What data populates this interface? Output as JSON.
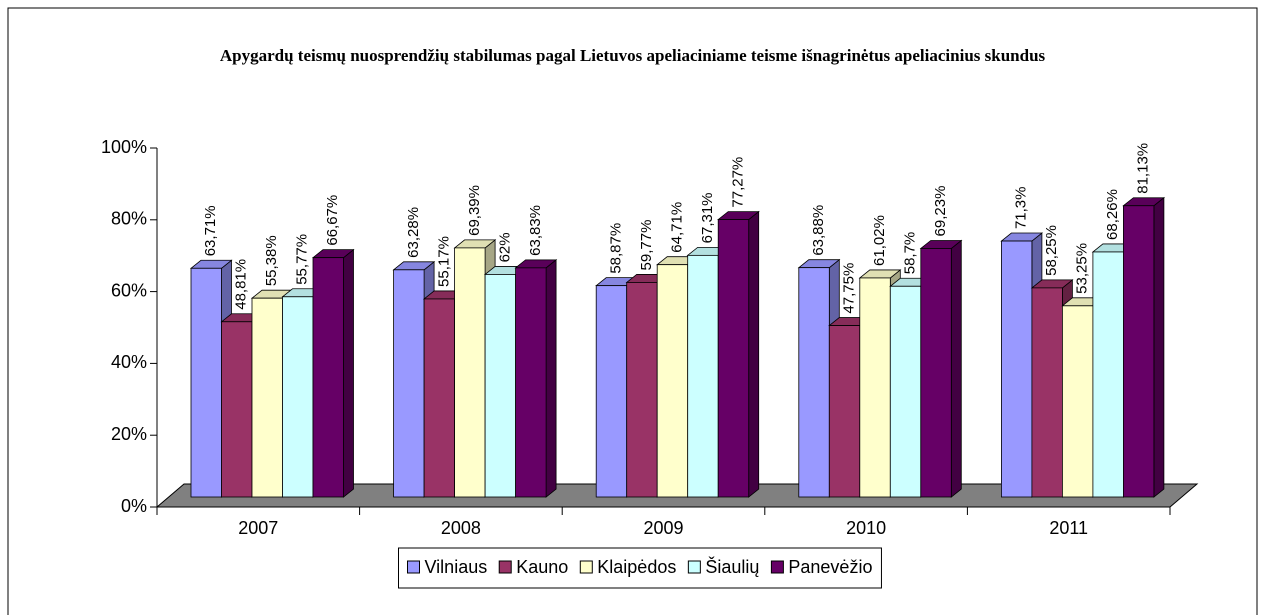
{
  "chart_data": {
    "type": "bar3d",
    "title": "Apygardų teismų nuosprendžių stabilumas pagal Lietuvos apeliaciniame teisme išnagrinėtus apeliacinius skundus",
    "categories": [
      "2007",
      "2008",
      "2009",
      "2010",
      "2011"
    ],
    "series": [
      {
        "name": "Vilniaus",
        "color": "#9999ff",
        "values": [
          63.71,
          63.28,
          58.87,
          63.88,
          71.3
        ],
        "value_labels": [
          "63,71%",
          "63,28%",
          "58,87%",
          "63,88%",
          "71,3%"
        ]
      },
      {
        "name": "Kauno",
        "color": "#993366",
        "values": [
          48.81,
          55.17,
          59.77,
          47.75,
          58.25
        ],
        "value_labels": [
          "48,81%",
          "55,17%",
          "59,77%",
          "47,75%",
          "58,25%"
        ]
      },
      {
        "name": "Klaipėdos",
        "color": "#ffffcc",
        "values": [
          55.38,
          69.39,
          64.71,
          61.02,
          53.25
        ],
        "value_labels": [
          "55,38%",
          "69,39%",
          "64,71%",
          "61,02%",
          "53,25%"
        ]
      },
      {
        "name": "Šiaulių",
        "color": "#ccffff",
        "values": [
          55.77,
          62,
          67.31,
          58.7,
          68.26
        ],
        "value_labels": [
          "55,77%",
          "62%",
          "67,31%",
          "58,7%",
          "68,26%"
        ]
      },
      {
        "name": "Panevėžio",
        "color": "#660066",
        "values": [
          66.67,
          63.83,
          77.27,
          69.23,
          81.13
        ],
        "value_labels": [
          "66,67%",
          "63,83%",
          "77,27%",
          "69,23%",
          "81,13%"
        ]
      }
    ],
    "ylim": [
      0,
      100
    ],
    "yticks": [
      {
        "value": 0,
        "label": "0%"
      },
      {
        "value": 20,
        "label": "20%"
      },
      {
        "value": 40,
        "label": "40%"
      },
      {
        "value": 60,
        "label": "60%"
      },
      {
        "value": 80,
        "label": "80%"
      },
      {
        "value": 100,
        "label": "100%"
      }
    ],
    "legend": "bottom"
  }
}
